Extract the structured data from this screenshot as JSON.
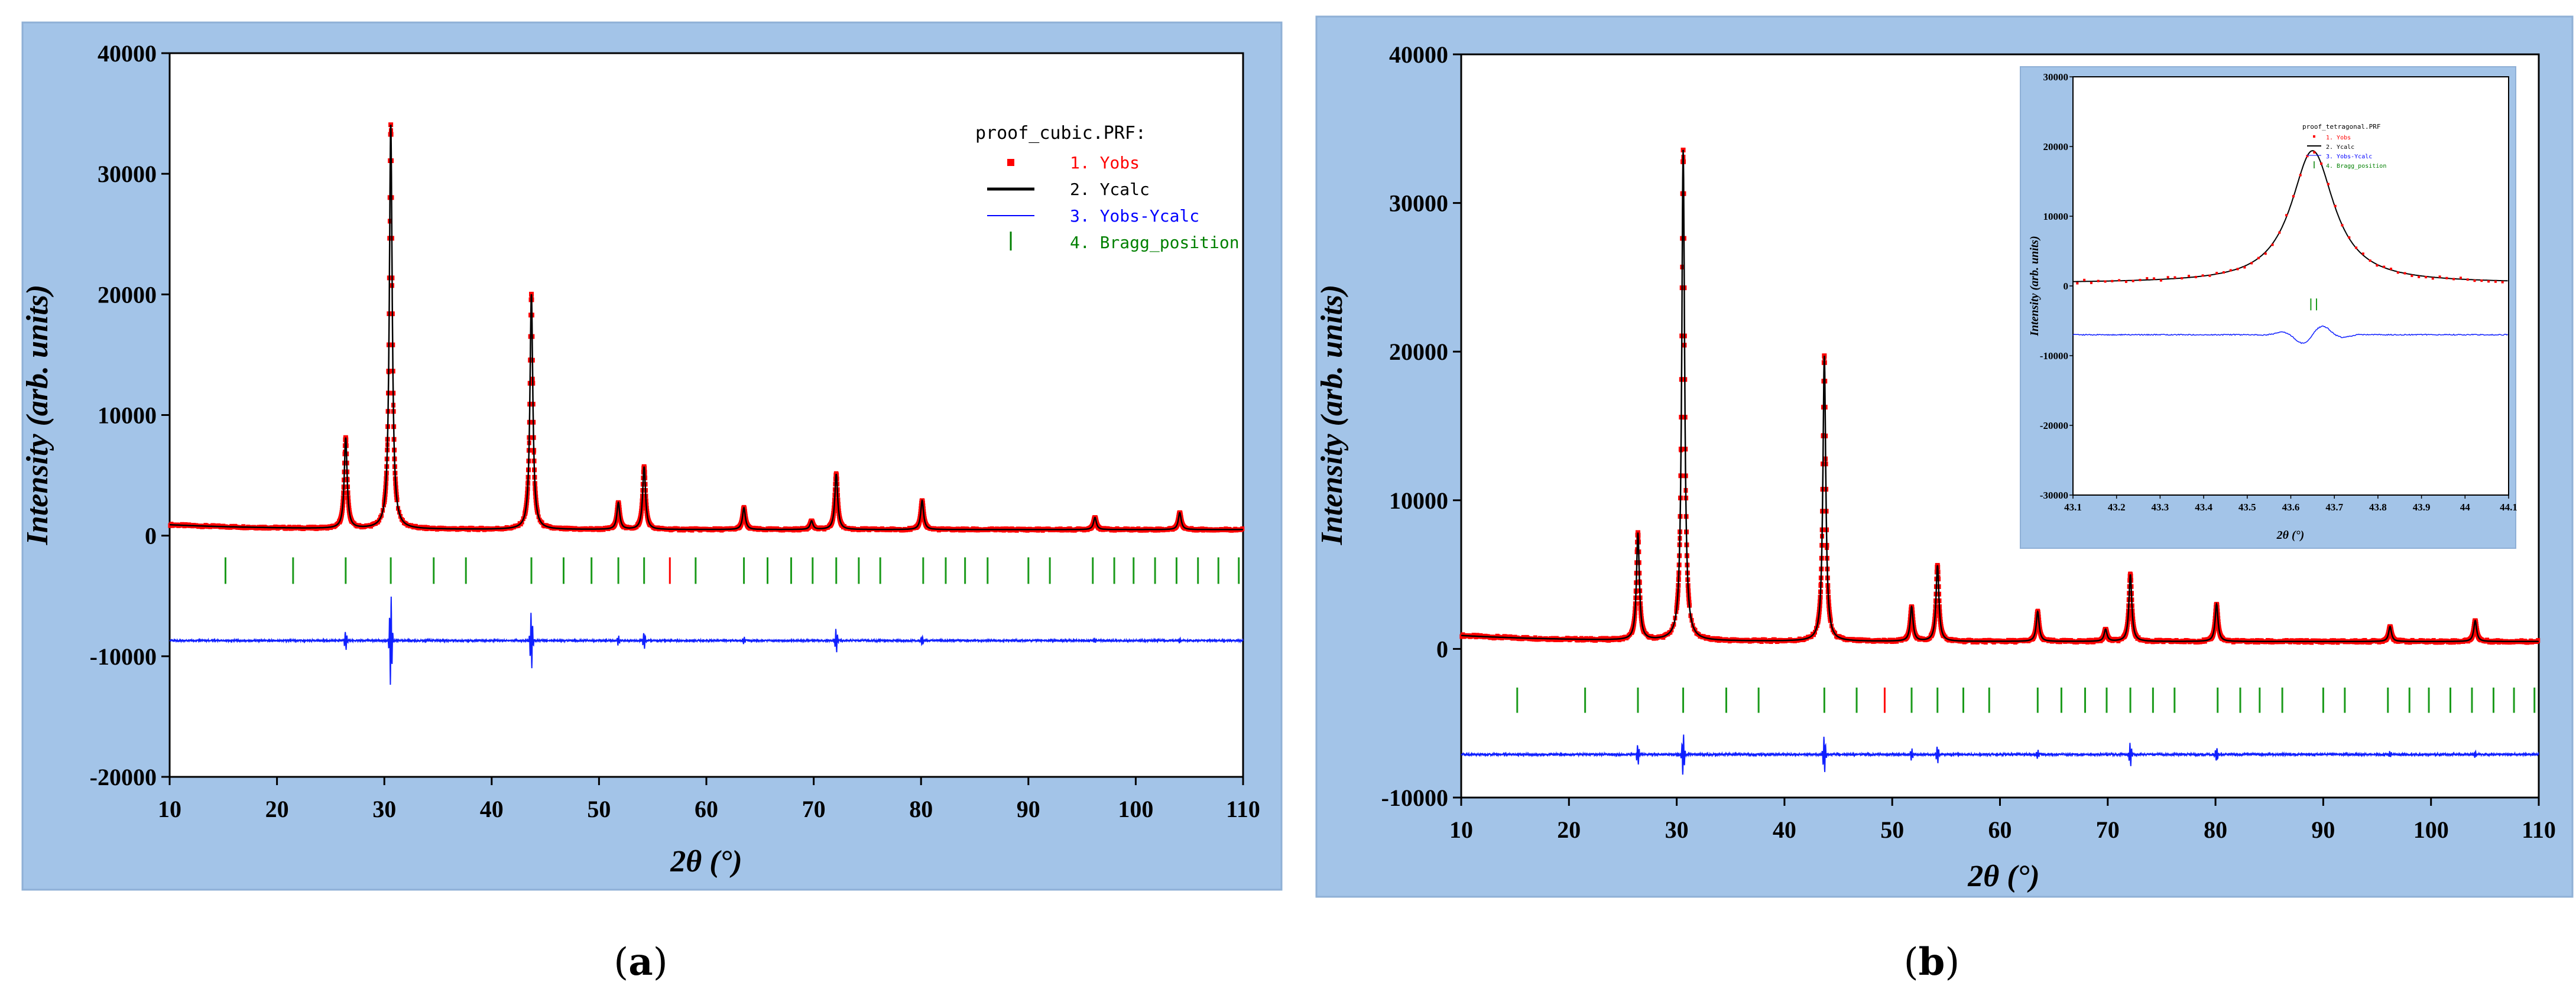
{
  "figure_labels": {
    "a": "a",
    "b": "b"
  },
  "chart_data": [
    {
      "id": "a",
      "type": "line",
      "title": "",
      "xlabel": "2θ (°)",
      "ylabel": "Intensity (arb. units)",
      "xlim": [
        10,
        110
      ],
      "ylim": [
        -20000,
        40000
      ],
      "xticks": [
        10,
        20,
        30,
        40,
        50,
        60,
        70,
        80,
        90,
        100,
        110
      ],
      "yticks": [
        -20000,
        -10000,
        0,
        10000,
        20000,
        30000,
        40000
      ],
      "legend": {
        "title": "proof_cubic.PRF:",
        "entries": [
          {
            "key": "yobs",
            "label": "1. Yobs",
            "color": "#ff0000"
          },
          {
            "key": "ycalc",
            "label": "2. Ycalc",
            "color": "#000000"
          },
          {
            "key": "diff",
            "label": "3. Yobs-Ycalc",
            "color": "#0000ff"
          },
          {
            "key": "bragg",
            "label": "4. Bragg_position",
            "color": "#008000"
          }
        ]
      },
      "background": 500,
      "background_start": 900,
      "peaks": [
        [
          26.4,
          7500
        ],
        [
          30.6,
          33500
        ],
        [
          43.7,
          19500
        ],
        [
          51.8,
          2200
        ],
        [
          54.2,
          5200
        ],
        [
          63.5,
          1800
        ],
        [
          69.8,
          700
        ],
        [
          72.1,
          4600
        ],
        [
          80.1,
          2400
        ],
        [
          96.2,
          1000
        ],
        [
          104.1,
          1400
        ]
      ],
      "ycalc_apex": 33800,
      "diff_offset": -8700,
      "diff_features": [
        [
          26.4,
          800
        ],
        [
          30.6,
          4000
        ],
        [
          43.7,
          2500
        ],
        [
          51.8,
          400
        ],
        [
          54.2,
          700
        ],
        [
          63.5,
          300
        ],
        [
          72.1,
          1000
        ],
        [
          80.1,
          400
        ],
        [
          96.2,
          200
        ],
        [
          104.1,
          200
        ]
      ],
      "bragg_y": [
        -4000,
        -1800
      ],
      "bragg_positions": [
        15.2,
        21.5,
        26.4,
        30.6,
        34.6,
        37.6,
        43.7,
        46.7,
        49.3,
        51.8,
        54.2,
        56.6,
        59.0,
        63.5,
        65.7,
        67.9,
        69.9,
        72.1,
        74.2,
        76.2,
        80.2,
        82.3,
        84.1,
        86.2,
        90.0,
        92.0,
        96.0,
        98.0,
        99.8,
        101.8,
        103.8,
        105.8,
        107.7,
        109.6
      ],
      "bragg_highlight": [
        56.6
      ]
    },
    {
      "id": "b",
      "type": "line",
      "title": "",
      "xlabel": "2θ (°)",
      "ylabel": "Intensity (arb. units)",
      "xlim": [
        10,
        110
      ],
      "ylim": [
        -10000,
        40000
      ],
      "xticks": [
        10,
        20,
        30,
        40,
        50,
        60,
        70,
        80,
        90,
        100,
        110
      ],
      "yticks": [
        -10000,
        0,
        10000,
        20000,
        30000,
        40000
      ],
      "background": 500,
      "background_start": 900,
      "peaks": [
        [
          26.4,
          7200
        ],
        [
          30.6,
          33000
        ],
        [
          43.7,
          19200
        ],
        [
          51.8,
          2300
        ],
        [
          54.2,
          5100
        ],
        [
          63.5,
          2000
        ],
        [
          69.8,
          800
        ],
        [
          72.1,
          4500
        ],
        [
          80.1,
          2500
        ],
        [
          96.2,
          1000
        ],
        [
          104.1,
          1400
        ]
      ],
      "ycalc_apex": 33500,
      "diff_offset": -7100,
      "diff_features": [
        [
          26.4,
          700
        ],
        [
          30.6,
          1500
        ],
        [
          43.7,
          1300
        ],
        [
          51.8,
          400
        ],
        [
          54.2,
          600
        ],
        [
          63.5,
          300
        ],
        [
          72.1,
          800
        ],
        [
          80.1,
          500
        ],
        [
          96.2,
          200
        ],
        [
          104.1,
          200
        ]
      ],
      "bragg_y": [
        -4300,
        -2600
      ],
      "bragg_positions": [
        15.2,
        21.5,
        26.4,
        30.6,
        34.6,
        37.6,
        43.7,
        46.7,
        49.3,
        51.8,
        54.2,
        56.6,
        59.0,
        63.5,
        65.7,
        67.9,
        69.9,
        72.1,
        74.2,
        76.2,
        80.2,
        82.3,
        84.1,
        86.2,
        90.0,
        92.0,
        96.0,
        98.0,
        99.8,
        101.8,
        103.8,
        105.8,
        107.7,
        109.6
      ],
      "bragg_highlight": [
        49.3
      ]
    },
    {
      "id": "b-inset",
      "type": "line",
      "title": "",
      "xlabel": "2θ (°)",
      "ylabel": "Intensity (arb. units)",
      "xlim": [
        43.1,
        44.1
      ],
      "ylim": [
        -30000,
        30000
      ],
      "xticks": [
        43.1,
        43.2,
        43.3,
        43.4,
        43.5,
        43.6,
        43.7,
        43.8,
        43.9,
        44.0,
        44.1
      ],
      "yticks": [
        -30000,
        -20000,
        -10000,
        0,
        10000,
        20000,
        30000
      ],
      "legend": {
        "title": "proof_tetragonal.PRF",
        "entries": [
          {
            "key": "yobs",
            "label": "1. Yobs",
            "color": "#ff0000"
          },
          {
            "key": "ycalc",
            "label": "2. Ycalc",
            "color": "#000000"
          },
          {
            "key": "diff",
            "label": "3. Yobs-Ycalc",
            "color": "#0000ff"
          },
          {
            "key": "bragg",
            "label": "4. Bragg_position",
            "color": "#008000"
          }
        ]
      },
      "peak_center": 43.65,
      "peak_height": 19000,
      "peak_width": 0.06,
      "baseline": 400,
      "diff_offset": -7000,
      "bragg_positions": [
        43.646,
        43.659
      ],
      "bragg_y": [
        -3500,
        -1800
      ]
    }
  ]
}
